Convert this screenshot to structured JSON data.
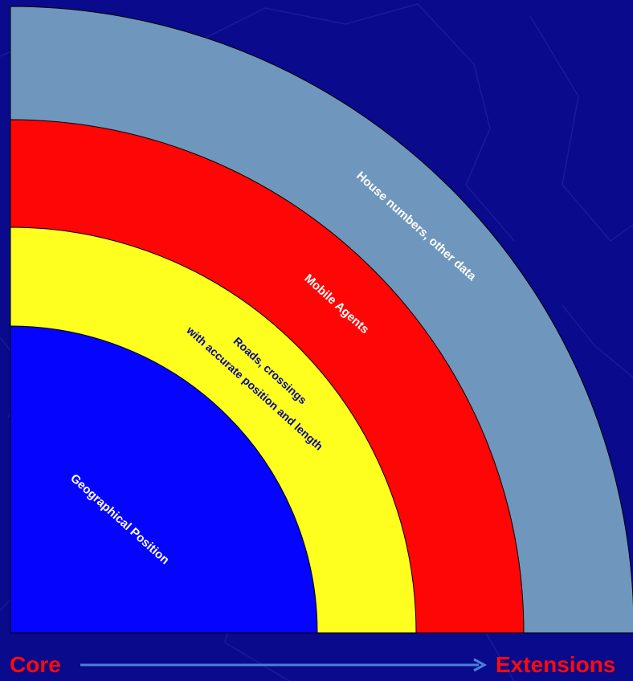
{
  "layers": [
    {
      "key": "house",
      "label": "House numbers, other data",
      "fill": "#6f97bd",
      "text_color": "#ffffff"
    },
    {
      "key": "agents",
      "label": "Mobile Agents",
      "fill": "#ff0606",
      "text_color": "#ffffff"
    },
    {
      "key": "roads",
      "label_line1": "Roads, crossings",
      "label_line2": "with accurate position and length",
      "fill": "#ffff1f",
      "text_color": "#0a0a8c"
    },
    {
      "key": "geo",
      "label": "Geographical Position",
      "fill": "#0404ff",
      "text_color": "#ffffff"
    }
  ],
  "axis": {
    "start_label": "Core",
    "end_label": "Extensions",
    "label_color": "#ff0a0a",
    "arrow_color": "#4a7fd6"
  },
  "colors": {
    "background": "#0a0a8c"
  }
}
